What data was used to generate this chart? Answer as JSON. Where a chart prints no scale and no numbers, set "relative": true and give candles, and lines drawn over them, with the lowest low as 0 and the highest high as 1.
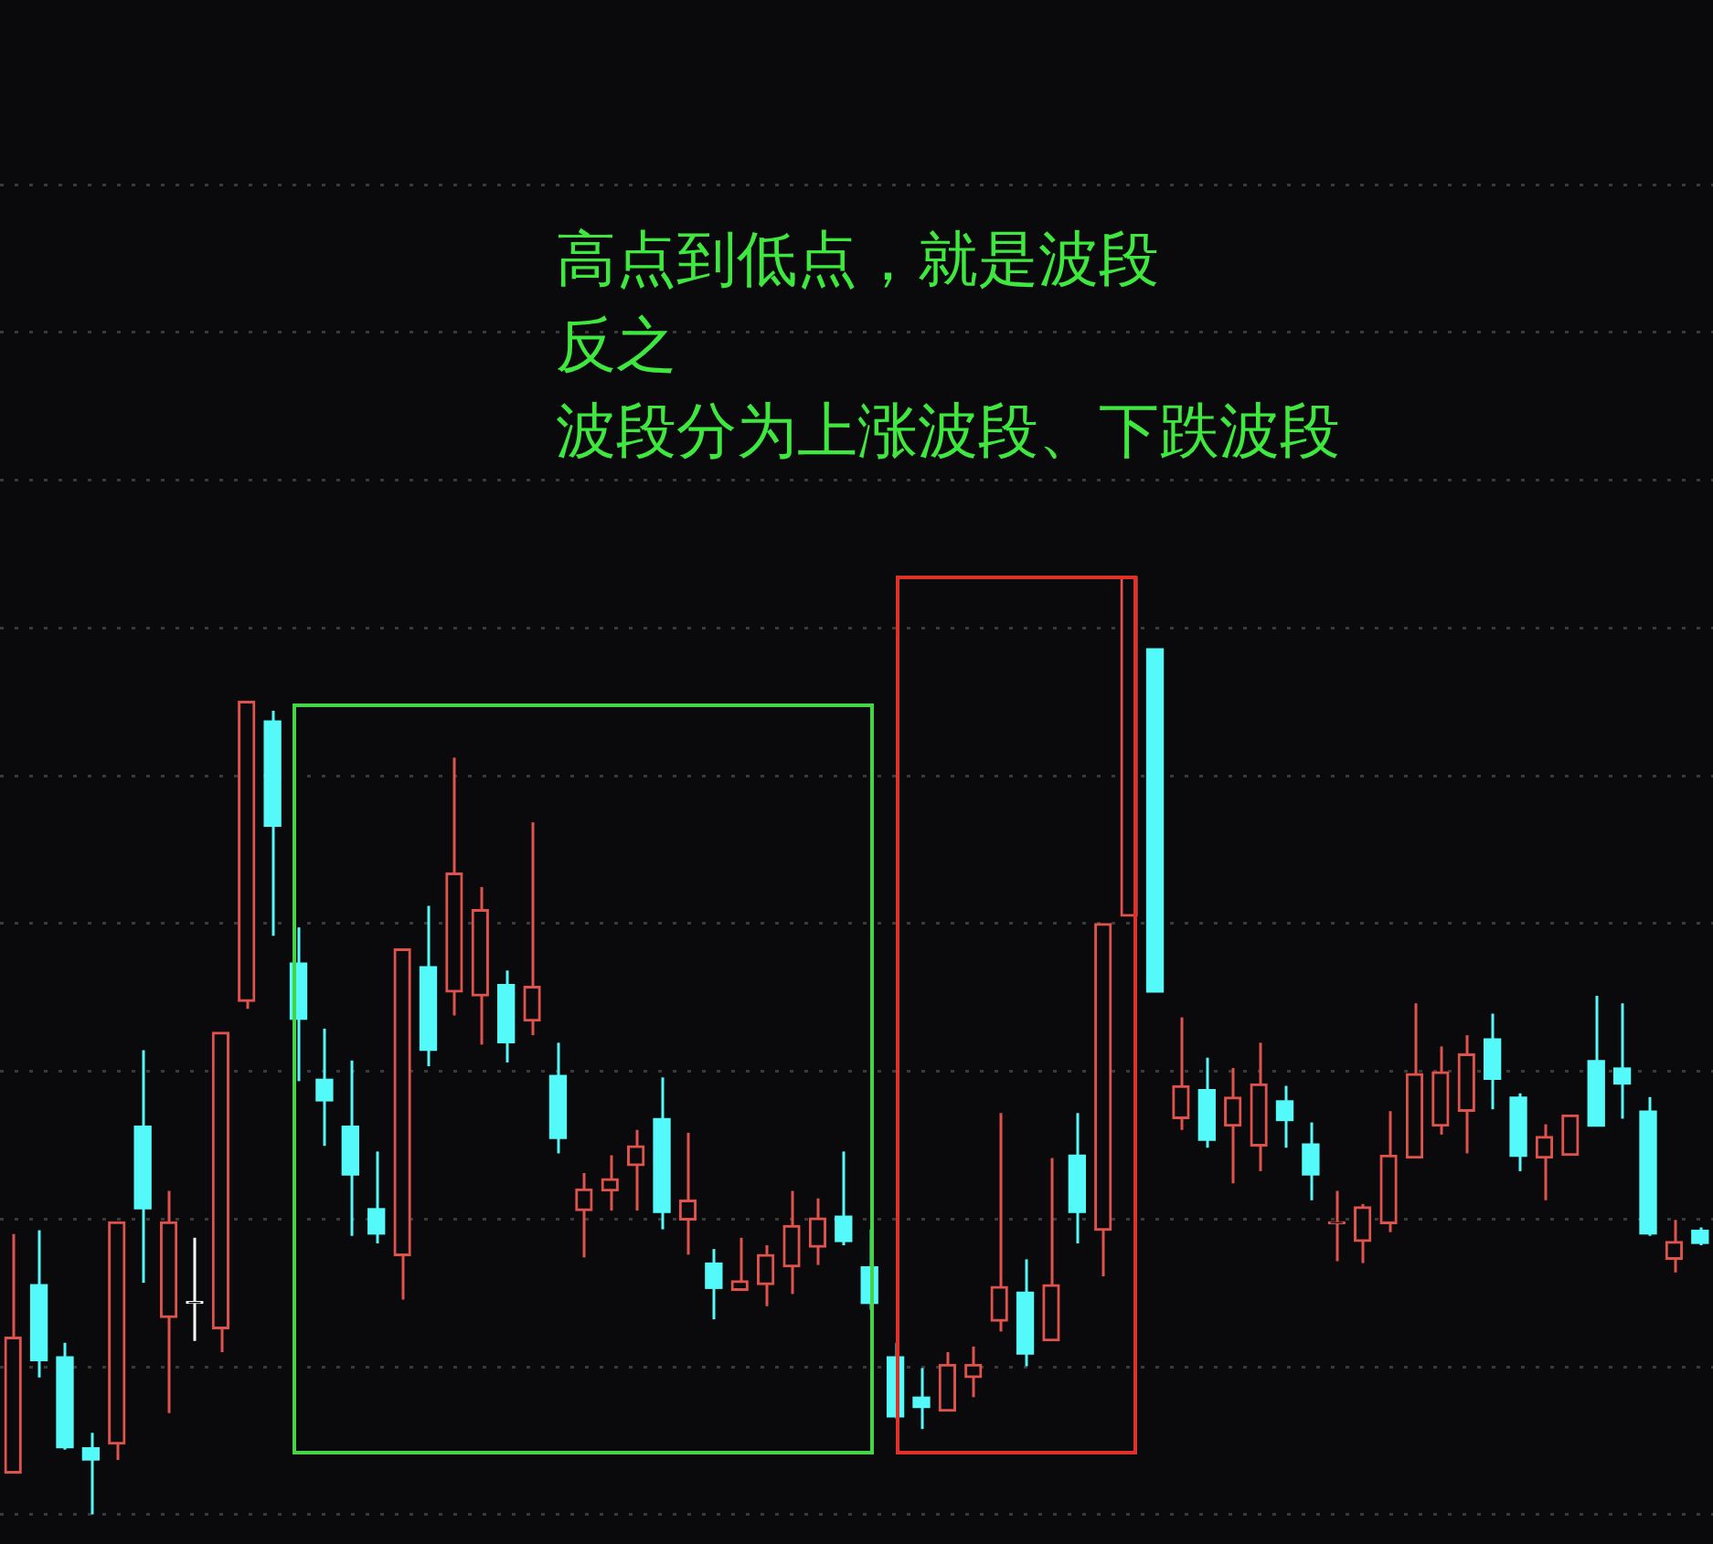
{
  "chart_data": {
    "type": "candlestick",
    "relative": true,
    "grid": "y",
    "annotations": [
      "高点到低点，就是波段",
      "反之",
      "波段分为上涨波段、下跌波段"
    ],
    "categories": [
      null,
      null,
      null,
      null,
      null,
      null,
      null,
      null,
      null,
      null,
      null,
      null,
      null,
      null,
      null,
      null,
      null,
      null,
      null,
      null,
      null,
      null,
      null,
      null,
      null,
      null,
      null,
      null,
      null,
      null,
      null,
      null,
      null,
      null,
      null,
      null,
      null,
      null,
      null,
      null,
      null,
      null,
      null,
      null,
      null,
      null,
      null,
      null,
      null,
      null,
      null,
      null,
      null,
      null,
      null,
      null,
      null,
      null,
      null,
      null,
      null,
      null,
      null,
      null,
      null,
      null
    ],
    "ohlc": [
      [
        0.044,
        0.299,
        0.044,
        0.189
      ],
      [
        0.245,
        0.303,
        0.146,
        0.164
      ],
      [
        0.168,
        0.183,
        0.069,
        0.071
      ],
      [
        0.071,
        0.087,
        0,
        0.058
      ],
      [
        0.075,
        0.312,
        0.058,
        0.312
      ],
      [
        0.414,
        0.495,
        0.247,
        0.326
      ],
      [
        0.21,
        0.345,
        0.108,
        0.312
      ],
      [
        0.225,
        0.295,
        0.185,
        0.227
      ],
      [
        0.198,
        0.514,
        0.173,
        0.514
      ],
      [
        0.547,
        0.867,
        0.539,
        0.867
      ],
      [
        0.846,
        0.857,
        0.617,
        0.734
      ],
      [
        0.588,
        0.626,
        0.462,
        0.528
      ],
      [
        0.464,
        0.518,
        0.393,
        0.441
      ],
      [
        0.414,
        0.484,
        0.297,
        0.362
      ],
      [
        0.326,
        0.387,
        0.289,
        0.299
      ],
      [
        0.276,
        0.603,
        0.229,
        0.603
      ],
      [
        0.584,
        0.649,
        0.478,
        0.495
      ],
      [
        0.557,
        0.807,
        0.532,
        0.684
      ],
      [
        0.553,
        0.669,
        0.501,
        0.645
      ],
      [
        0.565,
        0.58,
        0.482,
        0.503
      ],
      [
        0.526,
        0.738,
        0.511,
        0.563
      ],
      [
        0.468,
        0.503,
        0.385,
        0.401
      ],
      [
        0.324,
        0.364,
        0.274,
        0.347
      ],
      [
        0.345,
        0.383,
        0.324,
        0.358
      ],
      [
        0.372,
        0.41,
        0.324,
        0.393
      ],
      [
        0.422,
        0.466,
        0.304,
        0.322
      ],
      [
        0.314,
        0.407,
        0.277,
        0.335
      ],
      [
        0.268,
        0.283,
        0.208,
        0.241
      ],
      [
        0.239,
        0.295,
        0.239,
        0.249
      ],
      [
        0.245,
        0.287,
        0.222,
        0.277
      ],
      [
        0.264,
        0.345,
        0.235,
        0.308
      ],
      [
        0.285,
        0.337,
        0.266,
        0.316
      ],
      [
        0.318,
        0.387,
        0.287,
        0.291
      ],
      [
        0.264,
        0.304,
        0.218,
        0.225
      ],
      [
        0.168,
        0.183,
        0.102,
        0.104
      ],
      [
        0.125,
        0.156,
        0.091,
        0.114
      ],
      [
        0.11,
        0.173,
        0.11,
        0.16
      ],
      [
        0.146,
        0.179,
        0.125,
        0.16
      ],
      [
        0.206,
        0.428,
        0.195,
        0.243
      ],
      [
        0.237,
        0.272,
        0.158,
        0.171
      ],
      [
        0.185,
        0.38,
        0.185,
        0.245
      ],
      [
        0.383,
        0.428,
        0.289,
        0.322
      ],
      [
        0.303,
        0.63,
        0.254,
        0.63
      ],
      [
        0.638,
        1,
        0.638,
        1
      ],
      [
        0.923,
        0.923,
        0.557,
        0.557
      ],
      [
        0.422,
        0.53,
        0.41,
        0.457
      ],
      [
        0.453,
        0.487,
        0.391,
        0.399
      ],
      [
        0.414,
        0.476,
        0.353,
        0.445
      ],
      [
        0.393,
        0.503,
        0.366,
        0.459
      ],
      [
        0.441,
        0.457,
        0.391,
        0.42
      ],
      [
        0.395,
        0.418,
        0.335,
        0.362
      ],
      [
        0.31,
        0.345,
        0.27,
        0.312
      ],
      [
        0.291,
        0.331,
        0.268,
        0.328
      ],
      [
        0.31,
        0.43,
        0.301,
        0.383
      ],
      [
        0.38,
        0.545,
        0.38,
        0.47
      ],
      [
        0.414,
        0.499,
        0.405,
        0.472
      ],
      [
        0.43,
        0.511,
        0.385,
        0.491
      ],
      [
        0.507,
        0.534,
        0.432,
        0.464
      ],
      [
        0.445,
        0.449,
        0.366,
        0.382
      ],
      [
        0.38,
        0.416,
        0.335,
        0.403
      ],
      [
        0.383,
        0.426,
        0.383,
        0.426
      ],
      [
        0.484,
        0.553,
        0.414,
        0.414
      ],
      [
        0.476,
        0.545,
        0.422,
        0.459
      ],
      [
        0.43,
        0.445,
        0.297,
        0.299
      ],
      [
        0.272,
        0.314,
        0.258,
        0.291
      ],
      [
        0.303,
        0.306,
        0.287,
        0.289
      ]
    ],
    "colors": [
      "#e0524c",
      "#54fafa",
      "#54fafa",
      "#54fafa",
      "#e0524c",
      "#54fafa",
      "#e0524c",
      "#ffffff",
      "#e0524c",
      "#e0524c",
      "#54fafa",
      "#54fafa",
      "#54fafa",
      "#54fafa",
      "#54fafa",
      "#e0524c",
      "#54fafa",
      "#e0524c",
      "#e0524c",
      "#54fafa",
      "#e0524c",
      "#54fafa",
      "#e0524c",
      "#e0524c",
      "#e0524c",
      "#54fafa",
      "#e0524c",
      "#54fafa",
      "#e0524c",
      "#e0524c",
      "#e0524c",
      "#e0524c",
      "#54fafa",
      "#54fafa",
      "#54fafa",
      "#54fafa",
      "#e0524c",
      "#e0524c",
      "#e0524c",
      "#54fafa",
      "#e0524c",
      "#54fafa",
      "#e0524c",
      "#e0524c",
      "#54fafa",
      "#e0524c",
      "#54fafa",
      "#e0524c",
      "#e0524c",
      "#54fafa",
      "#54fafa",
      "#e0524c",
      "#e0524c",
      "#e0524c",
      "#e0524c",
      "#e0524c",
      "#e0524c",
      "#54fafa",
      "#54fafa",
      "#e0524c",
      "#e0524c",
      "#54fafa",
      "#54fafa",
      "#54fafa",
      "#e0524c",
      "#54fafa"
    ]
  }
}
